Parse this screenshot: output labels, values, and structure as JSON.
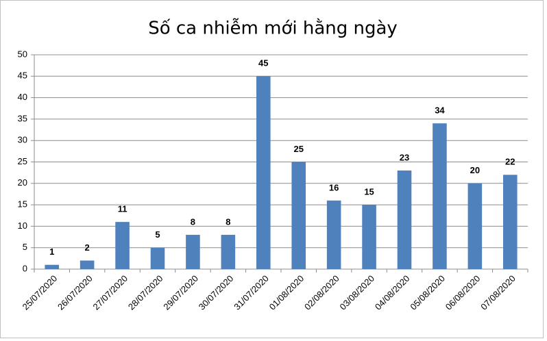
{
  "chart_data": {
    "type": "bar",
    "title": "Số ca nhiễm mới hằng ngày",
    "categories": [
      "25/07/2020",
      "26/07/2020",
      "27/07/2020",
      "28/07/2020",
      "29/07/2020",
      "30/07/2020",
      "31/07/2020",
      "01/08/2020",
      "02/08/2020",
      "03/08/2020",
      "04/08/2020",
      "05/08/2020",
      "06/08/2020",
      "07/08/2020"
    ],
    "values": [
      1,
      2,
      11,
      5,
      8,
      8,
      45,
      25,
      16,
      15,
      23,
      34,
      20,
      22
    ],
    "color": "#4f81bd",
    "ylim": [
      0,
      50
    ],
    "yticks": [
      0,
      5,
      10,
      15,
      20,
      25,
      30,
      35,
      40,
      45,
      50
    ],
    "grid": true
  }
}
